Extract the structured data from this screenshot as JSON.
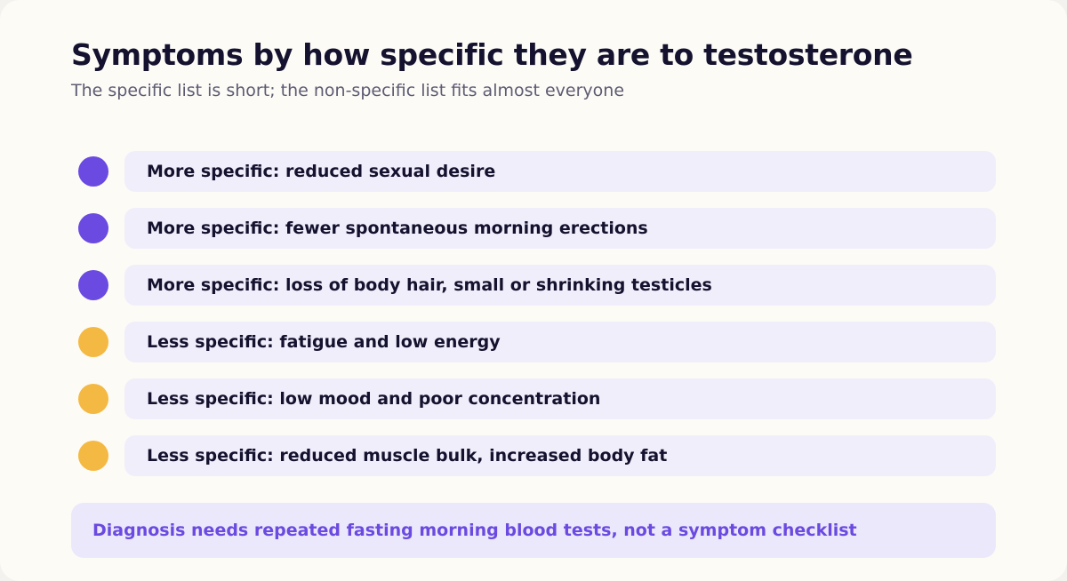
{
  "header": {
    "title": "Symptoms by how specific they are to testosterone",
    "subtitle": "The specific list is short; the non-specific list fits almost everyone"
  },
  "colors": {
    "more_specific": "#6a4ae0",
    "less_specific": "#f4b942"
  },
  "symptoms": [
    {
      "label": "More specific: reduced sexual desire",
      "kind": "more_specific"
    },
    {
      "label": "More specific: fewer spontaneous morning erections",
      "kind": "more_specific"
    },
    {
      "label": "More specific: loss of body hair, small or shrinking testicles",
      "kind": "more_specific"
    },
    {
      "label": "Less specific: fatigue and low energy",
      "kind": "less_specific"
    },
    {
      "label": "Less specific: low mood and poor concentration",
      "kind": "less_specific"
    },
    {
      "label": "Less specific: reduced muscle bulk, increased body fat",
      "kind": "less_specific"
    }
  ],
  "note": "Diagnosis needs repeated fasting morning blood tests, not a symptom checklist"
}
